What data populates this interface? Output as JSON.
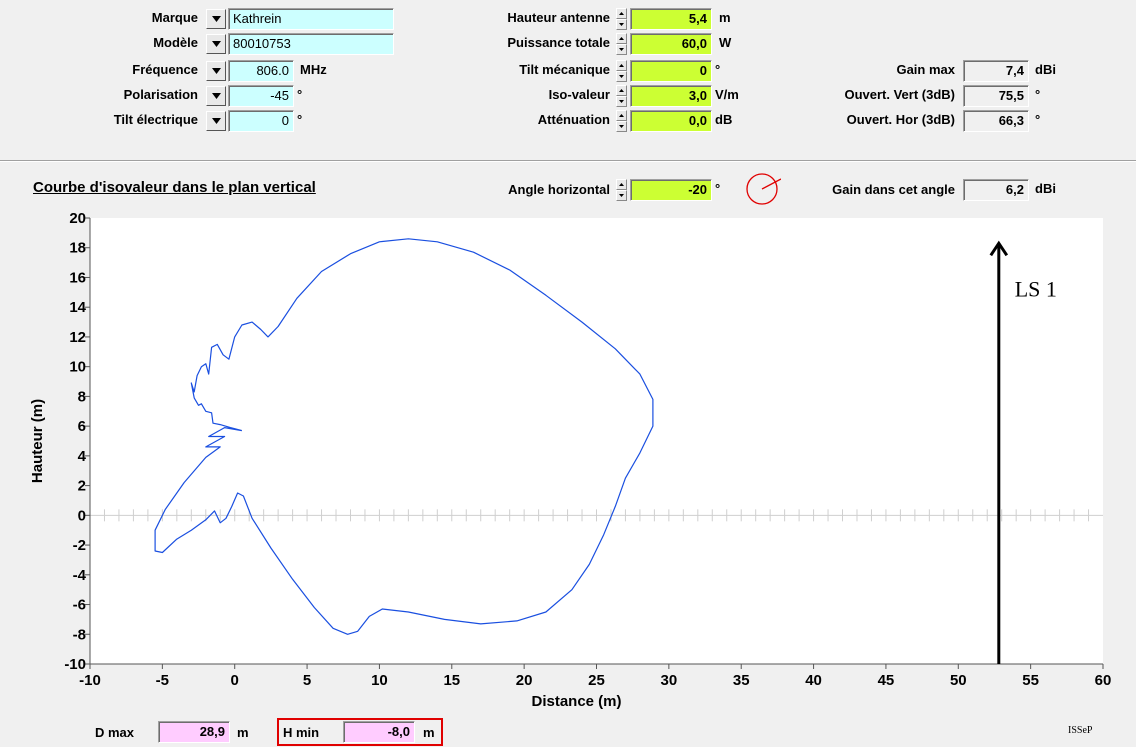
{
  "antenna": {
    "marque_label": "Marque",
    "marque_value": "Kathrein",
    "modele_label": "Modèle",
    "modele_value": "80010753",
    "frequence_label": "Fréquence",
    "frequence_value": "806.0",
    "frequence_unit": "MHz",
    "polarisation_label": "Polarisation",
    "polarisation_value": "-45",
    "polarisation_unit": "°",
    "tilt_elec_label": "Tilt électrique",
    "tilt_elec_value": "0",
    "tilt_elec_unit": "°"
  },
  "params": {
    "hauteur_label": "Hauteur antenne",
    "hauteur_value": "5,4",
    "hauteur_unit": "m",
    "puissance_label": "Puissance totale",
    "puissance_value": "60,0",
    "puissance_unit": "W",
    "tilt_meca_label": "Tilt mécanique",
    "tilt_meca_value": "0",
    "tilt_meca_unit": "°",
    "iso_label": "Iso-valeur",
    "iso_value": "3,0",
    "iso_unit": "V/m",
    "att_label": "Atténuation",
    "att_value": "0,0",
    "att_unit": "dB"
  },
  "results": {
    "gain_max_label": "Gain max",
    "gain_max_value": "7,4",
    "gain_max_unit": "dBi",
    "ouv_vert_label": "Ouvert. Vert (3dB)",
    "ouv_vert_value": "75,5",
    "ouv_vert_unit": "°",
    "ouv_hor_label": "Ouvert. Hor (3dB)",
    "ouv_hor_value": "66,3",
    "ouv_hor_unit": "°"
  },
  "section": {
    "title": "Courbe d'isovaleur dans le plan vertical",
    "angle_label": "Angle horizontal",
    "angle_value": "-20",
    "angle_unit": "°",
    "gain_angle_label": "Gain dans cet angle",
    "gain_angle_value": "6,2",
    "gain_angle_unit": "dBi"
  },
  "footer": {
    "dmax_label": "D max",
    "dmax_value": "28,9",
    "dmax_unit": "m",
    "hmin_label": "H min",
    "hmin_value": "-8,0",
    "hmin_unit": "m",
    "logo": "ISSeP"
  },
  "icons": {
    "dropdown": "dropdown-arrow-icon",
    "spinner": "spinner-icon",
    "angle_indicator": "angle-dial-icon"
  },
  "colors": {
    "curve": "#1a4fe0",
    "input_cyan": "#ccffff",
    "input_lime": "#ccff33",
    "input_pink": "#ffccff",
    "highlight_red": "#e00000"
  },
  "chart_data": {
    "type": "line",
    "xlabel": "Distance (m)",
    "ylabel": "Hauteur (m)",
    "xlim": [
      -10,
      60
    ],
    "ylim": [
      -10,
      20
    ],
    "xticks": [
      -10,
      -5,
      0,
      5,
      10,
      15,
      20,
      25,
      30,
      35,
      40,
      45,
      50,
      55,
      60
    ],
    "yticks": [
      -10,
      -8,
      -6,
      -4,
      -2,
      0,
      2,
      4,
      6,
      8,
      10,
      12,
      14,
      16,
      18,
      20
    ],
    "annotation": {
      "label": "LS 1",
      "x": 52.8,
      "y_from": -10,
      "y_to": 18.3
    },
    "isovalue_curve": [
      [
        0.5,
        5.7
      ],
      [
        -0.7,
        5.9
      ],
      [
        -1.8,
        5.3
      ],
      [
        -0.7,
        5.3
      ],
      [
        -2.0,
        4.6
      ],
      [
        -1.0,
        4.6
      ],
      [
        -2.0,
        3.9
      ],
      [
        -3.5,
        2.2
      ],
      [
        -4.8,
        0.4
      ],
      [
        -5.5,
        -1.0
      ],
      [
        -5.5,
        -2.4
      ],
      [
        -5.0,
        -2.5
      ],
      [
        -4.0,
        -1.6
      ],
      [
        -3.0,
        -1.0
      ],
      [
        -2.0,
        -0.3
      ],
      [
        -1.4,
        0.3
      ],
      [
        -1.0,
        -0.5
      ],
      [
        -0.6,
        -0.2
      ],
      [
        -0.2,
        0.6
      ],
      [
        0.2,
        1.5
      ],
      [
        0.6,
        1.3
      ],
      [
        1.2,
        -0.2
      ],
      [
        2.5,
        -2.2
      ],
      [
        4.0,
        -4.3
      ],
      [
        5.5,
        -6.2
      ],
      [
        6.8,
        -7.6
      ],
      [
        7.8,
        -8.0
      ],
      [
        8.5,
        -7.8
      ],
      [
        9.3,
        -6.8
      ],
      [
        10.2,
        -6.3
      ],
      [
        12.0,
        -6.5
      ],
      [
        14.5,
        -7.0
      ],
      [
        17.0,
        -7.3
      ],
      [
        19.5,
        -7.1
      ],
      [
        21.5,
        -6.5
      ],
      [
        23.3,
        -5.0
      ],
      [
        24.5,
        -3.3
      ],
      [
        25.5,
        -1.3
      ],
      [
        26.3,
        0.6
      ],
      [
        27.0,
        2.5
      ],
      [
        28.0,
        4.2
      ],
      [
        28.9,
        6.0
      ],
      [
        28.9,
        7.8
      ],
      [
        28.0,
        9.5
      ],
      [
        26.3,
        11.2
      ],
      [
        24.0,
        13.0
      ],
      [
        21.5,
        14.8
      ],
      [
        19.0,
        16.5
      ],
      [
        16.5,
        17.7
      ],
      [
        14.0,
        18.4
      ],
      [
        12.0,
        18.6
      ],
      [
        10.0,
        18.4
      ],
      [
        8.0,
        17.6
      ],
      [
        6.0,
        16.4
      ],
      [
        4.3,
        14.6
      ],
      [
        3.0,
        12.7
      ],
      [
        2.3,
        12.0
      ],
      [
        1.8,
        12.5
      ],
      [
        1.2,
        13.0
      ],
      [
        0.5,
        12.8
      ],
      [
        0.0,
        12.0
      ],
      [
        -0.4,
        10.5
      ],
      [
        -0.8,
        10.8
      ],
      [
        -1.2,
        11.5
      ],
      [
        -1.6,
        11.3
      ],
      [
        -1.8,
        9.5
      ],
      [
        -2.0,
        10.2
      ],
      [
        -2.3,
        10.0
      ],
      [
        -2.6,
        9.4
      ],
      [
        -2.8,
        8.3
      ],
      [
        -3.0,
        8.9
      ],
      [
        -2.8,
        7.9
      ],
      [
        -2.5,
        7.4
      ],
      [
        -2.3,
        7.5
      ],
      [
        -2.0,
        7.0
      ],
      [
        -1.6,
        6.9
      ],
      [
        -1.5,
        6.2
      ],
      [
        -1.0,
        6.1
      ],
      [
        -0.3,
        5.9
      ],
      [
        0.5,
        5.7
      ]
    ]
  }
}
